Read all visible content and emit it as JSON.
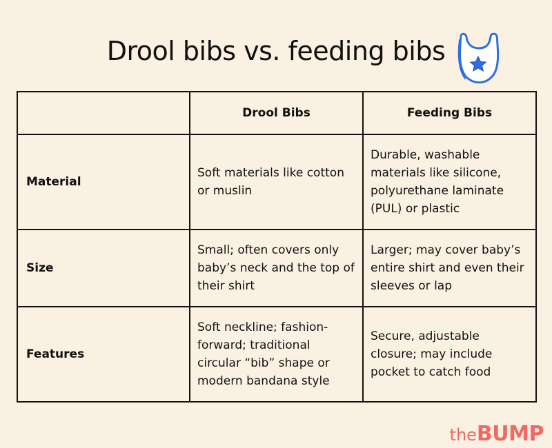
{
  "title": "Drool bibs vs. feeding bibs",
  "table": {
    "headers": [
      "",
      "Drool Bibs",
      "Feeding Bibs"
    ],
    "rows": [
      {
        "label": "Material",
        "drool": "Soft materials like cotton or muslin",
        "feeding": "Durable, washable materials like silicone, polyurethane laminate (PUL) or plastic"
      },
      {
        "label": "Size",
        "drool": "Small; often covers only baby’s neck and the top of their shirt",
        "feeding": "Larger; may cover baby’s entire shirt and even their sleeves or lap"
      },
      {
        "label": "Features",
        "drool": "Soft neckline; fashion-forward; traditional circular “bib” shape or modern bandana style",
        "feeding": "Secure, adjustable closure; may include pocket to catch food"
      }
    ]
  },
  "logo": {
    "the": "the",
    "bump": "BUMP"
  },
  "icons": {
    "title_icon": "baby-bib-star-icon"
  },
  "colors": {
    "background": "#fbf1e3",
    "logo": "#f06a63",
    "icon": "#2f6fe0"
  }
}
